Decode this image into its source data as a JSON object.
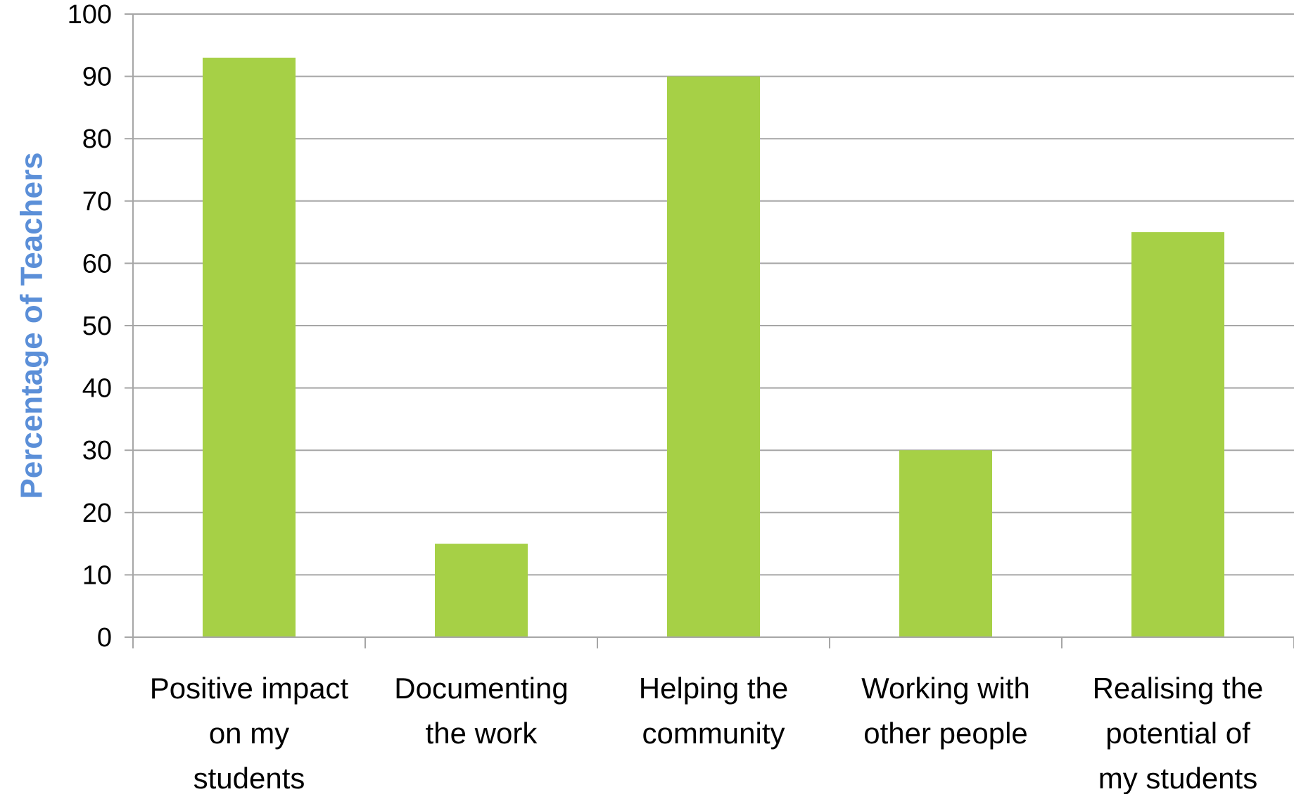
{
  "chart_data": {
    "type": "bar",
    "title": "",
    "xlabel": "",
    "ylabel": "Percentage of Teachers",
    "ylim": [
      0,
      100
    ],
    "yticks": [
      0,
      10,
      20,
      30,
      40,
      50,
      60,
      70,
      80,
      90,
      100
    ],
    "grid": true,
    "legend": "none",
    "categories": [
      [
        "Positive impact",
        "on my",
        "students"
      ],
      [
        "Documenting",
        "the work"
      ],
      [
        "Helping the",
        "community"
      ],
      [
        "Working with",
        "other people"
      ],
      [
        "Realising the",
        "potential of",
        "my students"
      ]
    ],
    "values": [
      93,
      15,
      90,
      30,
      65
    ],
    "colors": {
      "bar": "#A6D046",
      "ylabel": "#5B8FD8",
      "grid": "#A6A6A6",
      "axis": "#A6A6A6"
    }
  }
}
